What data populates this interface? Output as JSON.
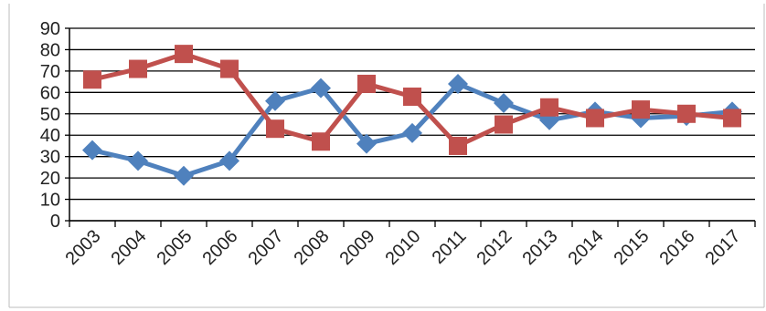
{
  "chart_data": {
    "type": "line",
    "title": "",
    "xlabel": "",
    "ylabel": "",
    "categories": [
      "2003",
      "2004",
      "2005",
      "2006",
      "2007",
      "2008",
      "2009",
      "2010",
      "2011",
      "2012",
      "2013",
      "2014",
      "2015",
      "2016",
      "2017"
    ],
    "y_ticks": [
      "0",
      "10",
      "20",
      "30",
      "40",
      "50",
      "60",
      "70",
      "80",
      "90"
    ],
    "ylim": [
      0,
      90
    ],
    "grid": true,
    "legend": "none",
    "series": [
      {
        "color": "#4f81bd",
        "marker": "diamond",
        "values": [
          33,
          28,
          21,
          28,
          56,
          62,
          36,
          41,
          64,
          55,
          47,
          51,
          48,
          49,
          51
        ]
      },
      {
        "color": "#c0504d",
        "marker": "square",
        "values": [
          66,
          71,
          78,
          71,
          43,
          37,
          64,
          58,
          35,
          45,
          53,
          48,
          52,
          50,
          48
        ]
      }
    ]
  }
}
